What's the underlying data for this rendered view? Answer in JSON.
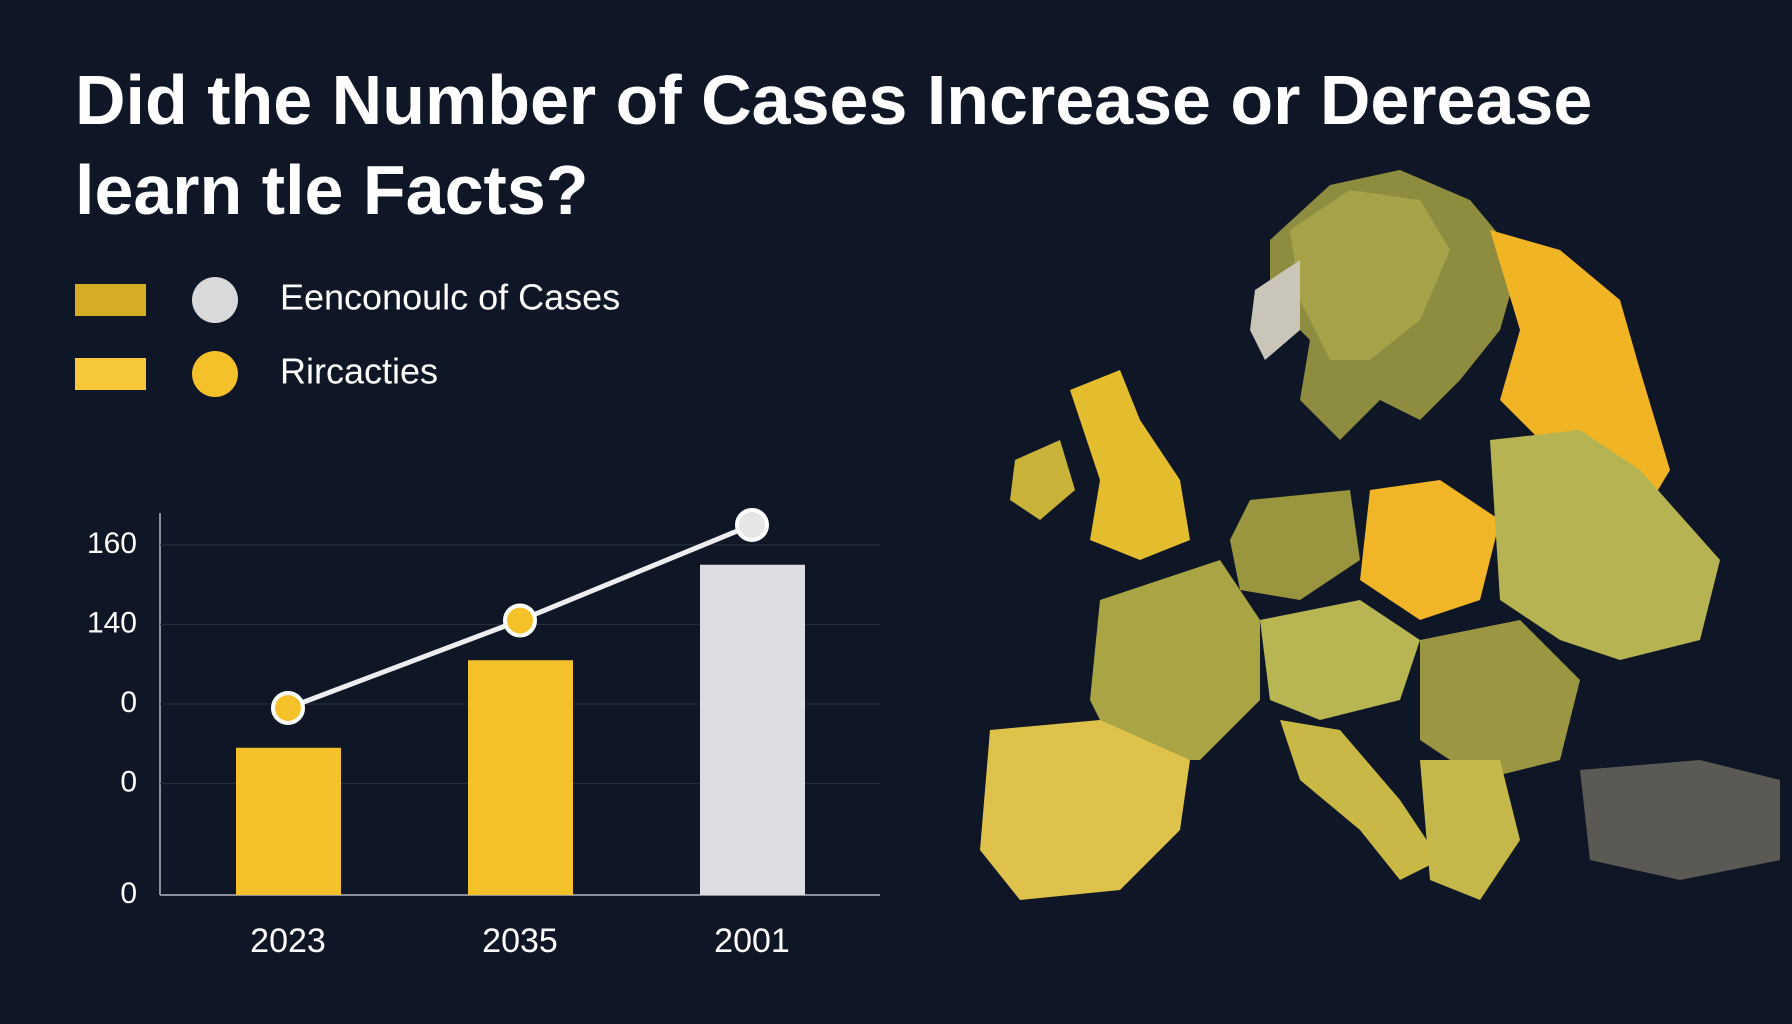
{
  "chart_data": {
    "type": "bar_line",
    "title": "Did the Number of Cases Increase or Derease learn tle Facts?",
    "categories": [
      "2023",
      "2035",
      "2001"
    ],
    "series": [
      {
        "name": "Eenconoulc of Cases",
        "type": "bar",
        "color": "#d6ae25",
        "marker_color": "#d9d9d9",
        "colors": [
          "#f4c12b",
          "#f4c12b",
          "#dcdde0"
        ],
        "values": [
          109,
          131,
          155
        ]
      },
      {
        "name": "Rircacties",
        "type": "line",
        "color": "#f6c83a",
        "marker_color": "#f4c12b",
        "line_color": "#eeeeee",
        "colors": [
          "#f4c12b",
          "#f4c12b",
          "#e6e6e6"
        ],
        "values": [
          119,
          141,
          165
        ]
      }
    ],
    "ylim": [
      72,
      168
    ],
    "yticks": [
      160,
      140,
      {
        "value": 120,
        "label": "0"
      },
      {
        "value": 100,
        "label": "0"
      },
      {
        "value": 72,
        "label": "0"
      }
    ],
    "grid": true
  }
}
